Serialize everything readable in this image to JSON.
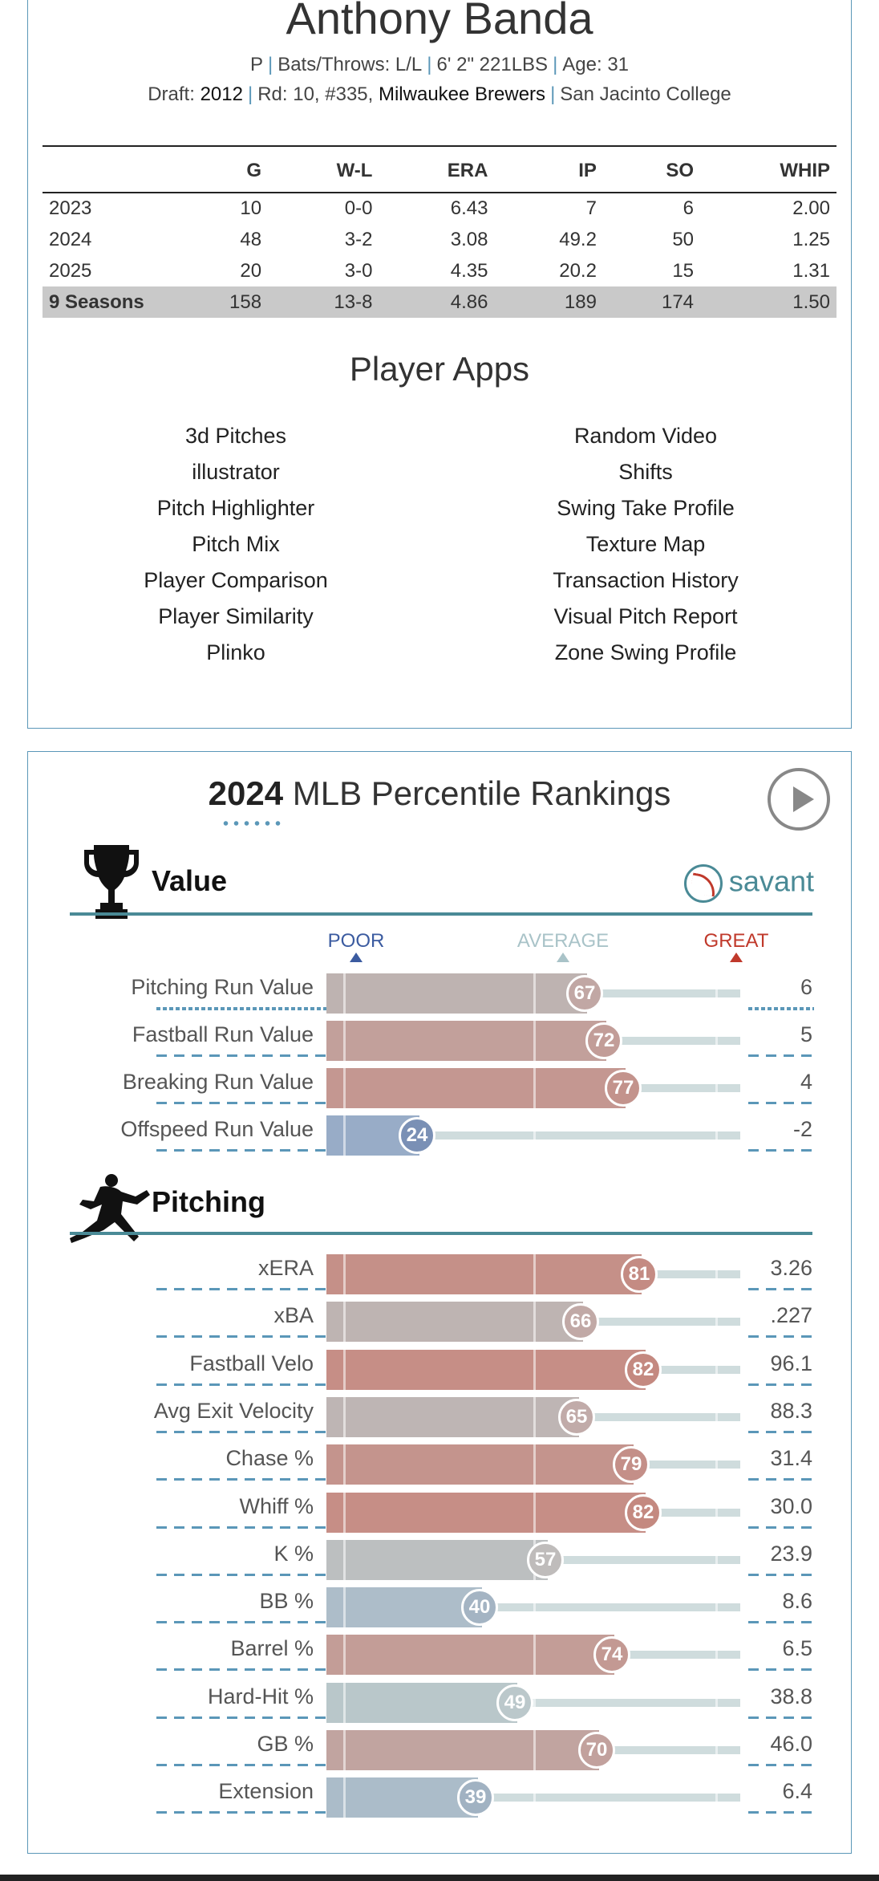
{
  "player": {
    "name": "Anthony Banda",
    "position": "P",
    "bats_throws": "Bats/Throws: L/L",
    "height_weight": "6' 2\" 221LBS",
    "age": "Age: 31",
    "draft_label": "Draft:",
    "draft_year": "2012",
    "draft_round": "Rd: 10, #335,",
    "draft_team": "Milwaukee Brewers",
    "college": "San Jacinto College"
  },
  "stats": {
    "headers": [
      "",
      "G",
      "W-L",
      "ERA",
      "IP",
      "SO",
      "WHIP"
    ],
    "rows": [
      [
        "2023",
        "10",
        "0-0",
        "6.43",
        "7",
        "6",
        "2.00"
      ],
      [
        "2024",
        "48",
        "3-2",
        "3.08",
        "49.2",
        "50",
        "1.25"
      ],
      [
        "2025",
        "20",
        "3-0",
        "4.35",
        "20.2",
        "15",
        "1.31"
      ]
    ],
    "total": [
      "9 Seasons",
      "158",
      "13-8",
      "4.86",
      "189",
      "174",
      "1.50"
    ]
  },
  "apps": {
    "title": "Player Apps",
    "left": [
      "3d Pitches",
      "illustrator",
      "Pitch Highlighter",
      "Pitch Mix",
      "Player Comparison",
      "Player Similarity",
      "Plinko"
    ],
    "right": [
      "Random Video",
      "Shifts",
      "Swing Take Profile",
      "Texture Map",
      "Transaction History",
      "Visual Pitch Report",
      "Zone Swing Profile"
    ]
  },
  "rankings": {
    "year": "2024",
    "title_rest": "MLB Percentile Rankings",
    "brand": "savant",
    "scale": {
      "poor": "POOR",
      "average": "AVERAGE",
      "great": "GREAT",
      "poor_color": "#3b5ba0",
      "average_color": "#a9c3c8",
      "great_color": "#c0392b"
    },
    "value_section": {
      "label": "Value",
      "metrics": [
        {
          "name": "Pitching Run Value",
          "pct": 67,
          "value": "6",
          "dense": true
        },
        {
          "name": "Fastball Run Value",
          "pct": 72,
          "value": "5"
        },
        {
          "name": "Breaking Run Value",
          "pct": 77,
          "value": "4"
        },
        {
          "name": "Offspeed Run Value",
          "pct": 24,
          "value": "-2"
        }
      ]
    },
    "pitching_section": {
      "label": "Pitching",
      "metrics": [
        {
          "name": "xERA",
          "pct": 81,
          "value": "3.26"
        },
        {
          "name": "xBA",
          "pct": 66,
          "value": ".227"
        },
        {
          "name": "Fastball Velo",
          "pct": 82,
          "value": "96.1"
        },
        {
          "name": "Avg Exit Velocity",
          "pct": 65,
          "value": "88.3"
        },
        {
          "name": "Chase %",
          "pct": 79,
          "value": "31.4"
        },
        {
          "name": "Whiff %",
          "pct": 82,
          "value": "30.0"
        },
        {
          "name": "K %",
          "pct": 57,
          "value": "23.9"
        },
        {
          "name": "BB %",
          "pct": 40,
          "value": "8.6"
        },
        {
          "name": "Barrel %",
          "pct": 74,
          "value": "6.5"
        },
        {
          "name": "Hard-Hit %",
          "pct": 49,
          "value": "38.8"
        },
        {
          "name": "GB %",
          "pct": 70,
          "value": "46.0"
        },
        {
          "name": "Extension",
          "pct": 39,
          "value": "6.4"
        }
      ]
    }
  }
}
